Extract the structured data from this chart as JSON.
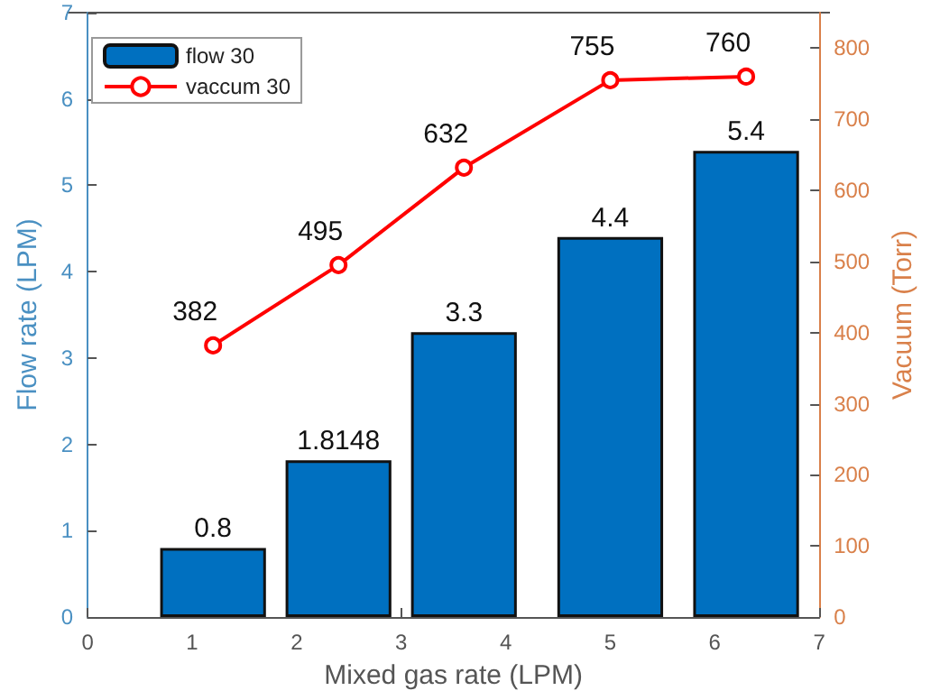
{
  "chart_data": {
    "type": "bar",
    "xlabel": "Mixed gas rate (LPM)",
    "ylabel": "Flow rate (LPM)",
    "y2label": "Vacuum (Torr)",
    "x": [
      1.2,
      2.4,
      3.6,
      5.0,
      6.3
    ],
    "series": [
      {
        "name": "flow 30",
        "color": "#0070c0",
        "values": [
          0.8,
          1.8148,
          3.3,
          4.4,
          5.4
        ]
      },
      {
        "name": "vaccum 30",
        "type": "line",
        "axis": "y2",
        "color": "#ff0000",
        "marker": "circle",
        "values": [
          382,
          495,
          632,
          755,
          760
        ]
      }
    ],
    "xlim": [
      0,
      7
    ],
    "xticks": [
      0,
      1,
      2,
      3,
      4,
      5,
      6,
      7
    ],
    "ylim": [
      0,
      7
    ],
    "yticks": [
      0,
      1,
      2,
      3,
      4,
      5,
      6,
      7
    ],
    "y2lim": [
      0,
      850
    ],
    "y2ticks": [
      0,
      100,
      200,
      300,
      400,
      500,
      600,
      700,
      800
    ],
    "data_labels": true,
    "grid": false,
    "legend": "top left"
  }
}
